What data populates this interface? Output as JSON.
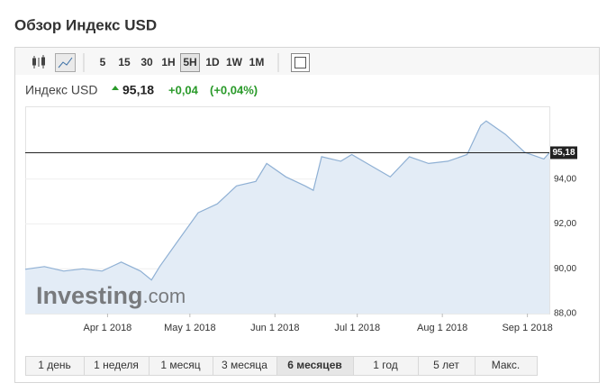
{
  "header": {
    "title": "Обзор Индекс USD"
  },
  "toolbar": {
    "intervals": [
      "5",
      "15",
      "30",
      "1H",
      "5H",
      "1D",
      "1W",
      "1M"
    ],
    "active_interval": 4
  },
  "quote": {
    "name": "Индекс USD",
    "price": "95,18",
    "change": "+0,04",
    "change_pct": "(+0,04%)"
  },
  "watermark": {
    "main": "Investing",
    "suffix": ".com"
  },
  "chart_data": {
    "type": "line",
    "x": [
      "2018-03-02",
      "2018-03-09",
      "2018-03-16",
      "2018-03-23",
      "2018-03-30",
      "2018-04-06",
      "2018-04-13",
      "2018-04-17",
      "2018-04-20",
      "2018-04-27",
      "2018-05-04",
      "2018-05-11",
      "2018-05-18",
      "2018-05-25",
      "2018-05-29",
      "2018-06-05",
      "2018-06-12",
      "2018-06-15",
      "2018-06-18",
      "2018-06-25",
      "2018-06-29",
      "2018-07-06",
      "2018-07-13",
      "2018-07-20",
      "2018-07-27",
      "2018-08-03",
      "2018-08-10",
      "2018-08-15",
      "2018-08-17",
      "2018-08-24",
      "2018-08-31",
      "2018-09-07",
      "2018-09-09"
    ],
    "values": [
      89.98,
      90.1,
      89.9,
      90.0,
      89.9,
      90.3,
      89.9,
      89.5,
      90.1,
      91.3,
      92.5,
      92.9,
      93.7,
      93.9,
      94.7,
      94.1,
      93.7,
      93.5,
      95.0,
      94.8,
      95.1,
      94.6,
      94.1,
      95.0,
      94.7,
      94.8,
      95.1,
      96.4,
      96.6,
      96.0,
      95.2,
      94.9,
      95.18
    ],
    "color": "#8fb0d4",
    "xlim": [
      "2018-03-02",
      "2018-09-09"
    ],
    "xticks": [
      {
        "value": "2018-04-01",
        "label": "Apr 1 2018"
      },
      {
        "value": "2018-05-01",
        "label": "May 1 2018"
      },
      {
        "value": "2018-06-01",
        "label": "Jun 1 2018"
      },
      {
        "value": "2018-07-01",
        "label": "Jul 1 2018"
      },
      {
        "value": "2018-08-01",
        "label": "Aug 1 2018"
      },
      {
        "value": "2018-09-01",
        "label": "Sep 1 2018"
      }
    ],
    "ylim": [
      88,
      97.25
    ],
    "yticks": [
      {
        "value": 88,
        "label": "88,00"
      },
      {
        "value": 90,
        "label": "90,00"
      },
      {
        "value": 92,
        "label": "92,00"
      },
      {
        "value": 94,
        "label": "94,00"
      }
    ],
    "price_line": {
      "value": 95.18,
      "label": "95,18"
    },
    "grid": true
  },
  "ranges": {
    "items": [
      "1 день",
      "1 неделя",
      "1 месяц",
      "3 месяца",
      "6 месяцев",
      "1 год",
      "5 лет",
      "Макс."
    ],
    "active": 4
  }
}
